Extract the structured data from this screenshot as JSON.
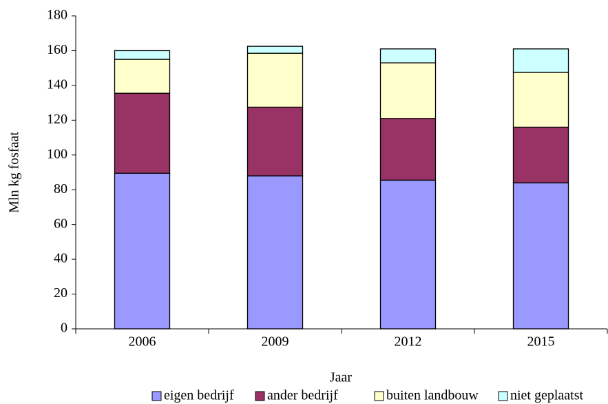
{
  "chart_data": {
    "type": "stacked_bar",
    "x_label": "Jaar",
    "y_label": "Mln kg fosfaat",
    "categories": [
      "2006",
      "2009",
      "2012",
      "2015"
    ],
    "series": [
      {
        "name": "eigen bedrijf",
        "color": "#9999ff",
        "values": [
          89.5,
          88,
          85.5,
          84
        ]
      },
      {
        "name": "ander bedrijf",
        "color": "#993366",
        "values": [
          46,
          39.5,
          35.5,
          32
        ]
      },
      {
        "name": "buiten landbouw",
        "color": "#ffffcc",
        "values": [
          19.5,
          31,
          32,
          31.5
        ]
      },
      {
        "name": "niet geplaatst",
        "color": "#ccffff",
        "values": [
          5,
          4,
          8,
          13.5
        ]
      }
    ],
    "ylim": [
      0,
      180
    ],
    "yticks": [
      0,
      20,
      40,
      60,
      80,
      100,
      120,
      140,
      160,
      180
    ],
    "legend": "bottom"
  }
}
